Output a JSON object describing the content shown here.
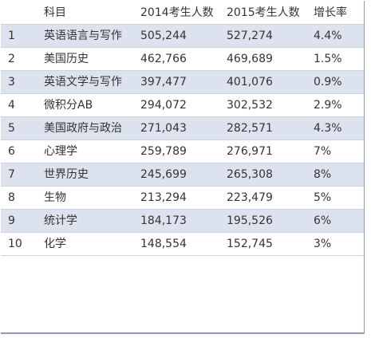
{
  "table": {
    "headers": [
      "",
      "科目",
      "2014考生人数",
      "2015考生人数",
      "增长率"
    ],
    "rows": [
      {
        "rank": "1",
        "subject": "英语语言与写作",
        "y2014": "505,244",
        "y2015": "527,274",
        "rate": "4.4%"
      },
      {
        "rank": "2",
        "subject": "美国历史",
        "y2014": "462,766",
        "y2015": "469,689",
        "rate": "1.5%"
      },
      {
        "rank": "3",
        "subject": "英语文学与写作",
        "y2014": "397,477",
        "y2015": "401,076",
        "rate": "0.9%"
      },
      {
        "rank": "4",
        "subject": "微积分AB",
        "y2014": "294,072",
        "y2015": "302,532",
        "rate": "2.9%"
      },
      {
        "rank": "5",
        "subject": "美国政府与政治",
        "y2014": "271,043",
        "y2015": "282,571",
        "rate": "4.3%"
      },
      {
        "rank": "6",
        "subject": "心理学",
        "y2014": "259,789",
        "y2015": "276,971",
        "rate": "7%"
      },
      {
        "rank": "7",
        "subject": "世界历史",
        "y2014": "245,699",
        "y2015": "265,308",
        "rate": "8%"
      },
      {
        "rank": "8",
        "subject": "生物",
        "y2014": "213,294",
        "y2015": "223,479",
        "rate": "5%"
      },
      {
        "rank": "9",
        "subject": "统计学",
        "y2014": "184,173",
        "y2015": "195,526",
        "rate": "6%"
      },
      {
        "rank": "10",
        "subject": "化学",
        "y2014": "148,554",
        "y2015": "152,745",
        "rate": "3%"
      }
    ]
  },
  "colors": {
    "shaded_row": "#dce3ef",
    "plain_row": "#ffffff",
    "text": "#333333",
    "frame": "#8e9ab0"
  }
}
